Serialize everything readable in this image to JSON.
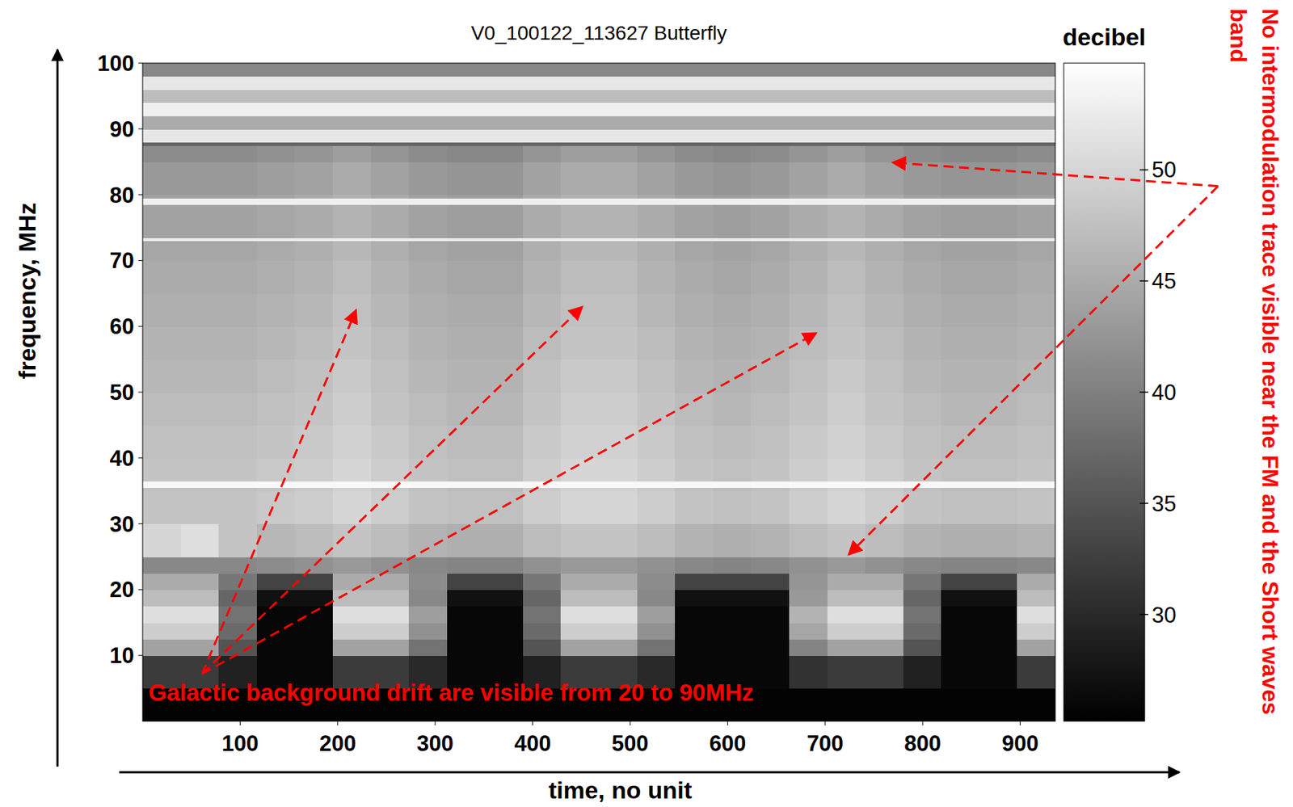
{
  "chart_data": {
    "type": "heatmap",
    "title": "V0_100122_113627 Butterfly",
    "x_label": "time, no unit",
    "y_label": "frequency, MHz",
    "xlim": [
      0,
      936
    ],
    "ylim": [
      0,
      100
    ],
    "xticks": [
      100,
      200,
      300,
      400,
      500,
      600,
      700,
      800,
      900
    ],
    "yticks": [
      10,
      20,
      30,
      40,
      50,
      60,
      70,
      80,
      90,
      100
    ],
    "x_edges": [
      0,
      39,
      78,
      117,
      156,
      195,
      234,
      273,
      312,
      351,
      390,
      429,
      468,
      507,
      546,
      585,
      624,
      663,
      702,
      741,
      780,
      819,
      858,
      897,
      936
    ],
    "y_edges": [
      0,
      5,
      10,
      12.5,
      15,
      17.5,
      20,
      22.5,
      25,
      30,
      35,
      35.5,
      36.5,
      40,
      45,
      50,
      55,
      60,
      65,
      70,
      72.5,
      73,
      73.5,
      78.5,
      79.5,
      80,
      85,
      87.5,
      88,
      90,
      92,
      94,
      96,
      98,
      100
    ],
    "cells": [
      [
        25.5,
        25.5,
        25.5,
        25.5,
        25.5,
        25.5,
        25.5,
        25.5,
        25.5,
        25.5,
        25.5,
        25.5,
        25.5,
        25.5,
        25.5,
        25.5,
        25.5,
        25.5,
        25.5,
        25.5,
        25.5,
        25.5,
        25.5,
        25.5
      ],
      [
        32,
        32,
        29,
        26,
        26,
        32,
        32,
        30,
        26,
        26,
        29,
        32,
        32,
        30,
        26,
        26,
        26,
        31,
        32,
        32,
        29,
        26,
        26,
        32
      ],
      [
        44,
        44,
        35,
        26,
        26,
        44,
        44,
        38.5,
        26,
        26,
        35,
        44,
        44,
        38.5,
        26,
        26,
        26,
        40.5,
        44,
        44,
        35,
        26,
        26,
        44
      ],
      [
        49,
        49,
        37.5,
        26,
        26,
        49,
        49,
        42,
        26,
        26,
        37.5,
        49,
        49,
        42,
        26,
        26,
        26,
        44.5,
        49,
        49,
        37.5,
        26,
        26,
        49
      ],
      [
        51,
        51,
        38.5,
        26,
        26,
        51,
        51,
        43.5,
        26,
        26,
        38.5,
        51,
        51,
        43.5,
        26,
        26,
        26,
        46,
        51,
        51,
        38.5,
        26,
        26,
        51
      ],
      [
        47,
        47,
        37,
        27,
        27,
        47,
        47,
        41,
        27,
        27,
        37,
        47,
        47,
        41,
        27,
        27,
        27,
        43,
        47,
        47,
        37,
        27,
        27,
        47
      ],
      [
        45,
        45,
        39,
        33,
        33,
        45,
        45,
        41.5,
        33,
        33,
        39,
        45,
        45,
        41.5,
        33,
        33,
        33,
        42.5,
        45,
        45,
        39,
        33,
        33,
        45
      ],
      [
        41,
        41,
        41,
        41.5,
        42,
        43,
        42,
        41,
        40.5,
        40.5,
        42,
        43,
        43,
        42,
        41,
        40.5,
        41,
        42,
        43,
        42,
        41,
        40.5,
        40.5,
        41
      ],
      [
        50,
        51,
        48,
        46.5,
        47,
        48,
        47,
        46,
        45.5,
        45.5,
        47,
        48,
        48,
        47,
        46,
        45.5,
        46,
        47,
        48,
        47,
        46,
        45.5,
        45.5,
        46
      ],
      [
        48,
        48,
        48,
        48.5,
        49,
        50,
        49,
        48,
        47.5,
        47.5,
        49,
        50,
        50,
        49,
        48,
        47.5,
        48,
        49,
        50,
        49,
        48,
        47.5,
        47.5,
        48
      ],
      [
        47.5,
        47.5,
        47.5,
        48,
        48.5,
        49.5,
        48.5,
        47.5,
        47,
        47,
        48.5,
        49.5,
        49.5,
        48.5,
        47.5,
        47,
        47.5,
        48.5,
        49.5,
        48.5,
        47.5,
        47,
        47,
        47.5
      ],
      [
        54,
        54,
        54,
        54,
        54,
        54,
        54,
        54,
        54,
        54,
        54,
        54,
        54,
        54,
        54,
        54,
        54,
        54,
        54,
        54,
        54,
        54,
        54,
        54
      ],
      [
        48,
        48,
        48,
        48.5,
        49,
        50,
        49,
        48,
        47.5,
        47.5,
        49,
        50,
        50,
        49,
        48,
        47.5,
        48,
        49,
        50,
        49,
        48,
        47.5,
        47.5,
        48
      ],
      [
        47.5,
        47.5,
        47.5,
        48,
        48.5,
        49.5,
        48.5,
        47.5,
        47,
        47,
        48.5,
        49.5,
        49.5,
        48.5,
        47.5,
        47,
        47.5,
        48.5,
        49.5,
        48.5,
        47.5,
        47,
        47,
        47.5
      ],
      [
        47,
        47,
        47,
        47.5,
        48,
        49,
        48,
        47,
        46.5,
        46.5,
        48,
        49,
        49,
        48,
        47,
        46.5,
        47,
        48,
        49,
        48,
        47,
        46.5,
        46.5,
        47
      ],
      [
        46.5,
        46.5,
        46.5,
        47,
        47.5,
        48.5,
        47.5,
        46.5,
        46,
        46,
        47.5,
        48.5,
        48.5,
        47.5,
        46.5,
        46,
        46.5,
        47.5,
        48.5,
        47.5,
        46.5,
        46,
        46,
        46.5
      ],
      [
        46,
        46,
        46,
        46.5,
        47,
        48,
        47,
        46,
        45.5,
        45.5,
        47,
        48,
        48,
        47,
        46,
        45.5,
        46,
        47,
        48,
        47,
        46,
        45.5,
        45.5,
        46
      ],
      [
        45.5,
        45.5,
        45.5,
        46,
        46.5,
        47.5,
        46.5,
        45.5,
        45,
        45,
        46.5,
        47.5,
        47.5,
        46.5,
        45.5,
        45,
        45.5,
        46.5,
        47.5,
        46.5,
        45.5,
        45,
        45,
        45.5
      ],
      [
        45,
        45,
        45,
        45.5,
        46,
        47,
        46,
        45,
        44.5,
        44.5,
        46,
        47,
        47,
        46,
        45,
        44.5,
        45,
        46,
        47,
        46,
        45,
        44.5,
        44.5,
        45
      ],
      [
        44.5,
        44.5,
        44.5,
        45,
        45.5,
        46.5,
        45.5,
        44.5,
        44,
        44,
        45.5,
        46.5,
        46.5,
        45.5,
        44.5,
        44,
        44.5,
        45.5,
        46.5,
        45.5,
        44.5,
        44,
        44,
        44.5
      ],
      [
        44.5,
        44.5,
        44.5,
        45,
        45.5,
        46.5,
        45.5,
        44.5,
        44,
        44,
        45.5,
        46.5,
        46.5,
        45.5,
        44.5,
        44,
        44.5,
        45.5,
        46.5,
        45.5,
        44.5,
        44,
        44,
        44.5
      ],
      [
        53,
        53,
        53,
        53,
        53,
        53,
        53,
        53,
        53,
        53,
        53,
        53,
        53,
        53,
        53,
        53,
        53,
        53,
        53,
        53,
        53,
        53,
        53,
        53
      ],
      [
        44,
        44,
        44,
        44.5,
        45,
        46,
        45,
        44,
        43.5,
        43.5,
        45,
        46,
        46,
        45,
        44,
        43.5,
        44,
        45,
        46,
        45,
        44,
        43.5,
        43.5,
        44
      ],
      [
        53,
        53,
        53,
        53,
        53,
        53,
        53,
        53,
        53,
        53,
        53,
        53,
        53,
        53,
        53,
        53,
        53,
        53,
        53,
        53,
        53,
        53,
        53,
        53
      ],
      [
        44,
        44,
        44,
        44.5,
        45,
        46,
        45,
        44,
        43.5,
        43.5,
        45,
        46,
        46,
        45,
        44,
        43.5,
        44,
        45,
        46,
        45,
        44,
        43.5,
        43.5,
        44
      ],
      [
        43,
        43,
        43,
        43.5,
        44,
        45,
        44,
        43,
        42.5,
        42.5,
        44,
        45,
        45,
        44,
        43,
        42.5,
        43,
        44,
        45,
        44,
        43,
        42.5,
        42.5,
        43
      ],
      [
        41.5,
        41.5,
        41.5,
        42,
        42.5,
        43.5,
        42.5,
        41.5,
        41,
        41,
        42.5,
        43.5,
        43.5,
        42.5,
        41.5,
        41,
        41.5,
        42.5,
        43.5,
        42.5,
        41.5,
        41,
        41,
        41.5
      ],
      [
        37,
        37,
        37,
        37,
        37,
        37,
        37,
        37,
        37,
        37,
        37,
        37,
        37,
        37,
        37,
        37,
        37,
        37,
        37,
        37,
        37,
        37,
        37,
        37
      ],
      [
        52,
        52,
        52,
        52,
        52,
        52,
        52,
        52,
        52,
        52,
        52,
        52,
        52,
        52,
        52,
        52,
        52,
        52,
        52,
        52,
        52,
        52,
        52,
        52
      ],
      [
        45,
        45,
        45,
        45,
        45,
        45,
        45,
        45,
        45,
        45,
        45,
        45,
        45,
        45,
        45,
        45,
        45,
        45,
        45,
        45,
        45,
        45,
        45,
        45
      ],
      [
        53,
        53,
        53,
        53,
        53,
        53,
        53,
        53,
        53,
        53,
        53,
        53,
        53,
        53,
        53,
        53,
        53,
        53,
        53,
        53,
        53,
        53,
        53,
        53
      ],
      [
        47,
        47,
        47,
        47,
        47,
        47,
        47,
        47,
        47,
        47,
        47,
        47,
        47,
        47,
        47,
        47,
        47,
        47,
        47,
        47,
        47,
        47,
        47,
        47
      ],
      [
        52,
        52,
        52,
        52,
        52,
        52,
        52,
        52,
        52,
        52,
        52,
        52,
        52,
        52,
        52,
        52,
        52,
        52,
        52,
        52,
        52,
        52,
        52,
        52
      ],
      [
        41,
        41,
        41,
        41,
        41,
        41,
        41,
        41,
        41,
        41,
        41,
        41,
        41,
        41,
        41,
        41,
        41,
        41,
        41,
        41,
        41,
        41,
        41,
        41
      ]
    ],
    "color_label": "decibel",
    "color_range": [
      25.2,
      54.8
    ],
    "color_ticks": [
      30,
      35,
      40,
      45,
      50
    ],
    "annotations": [
      {
        "text": "Galactic background drift are visible from 20 to 90MHz",
        "x": 6,
        "y": 3.1,
        "arrow_from": [
          61,
          7.2
        ],
        "arrows_to": [
          [
            219,
            62.5
          ],
          [
            451,
            63
          ],
          [
            691,
            59
          ]
        ]
      },
      {
        "text": "No intermodulation trace visible near the FM and the Short waves band",
        "arrow_from": [
          1103,
          81.3
        ],
        "arrows_to": [
          [
            769,
            84.9
          ],
          [
            724,
            25.3
          ]
        ]
      }
    ]
  }
}
